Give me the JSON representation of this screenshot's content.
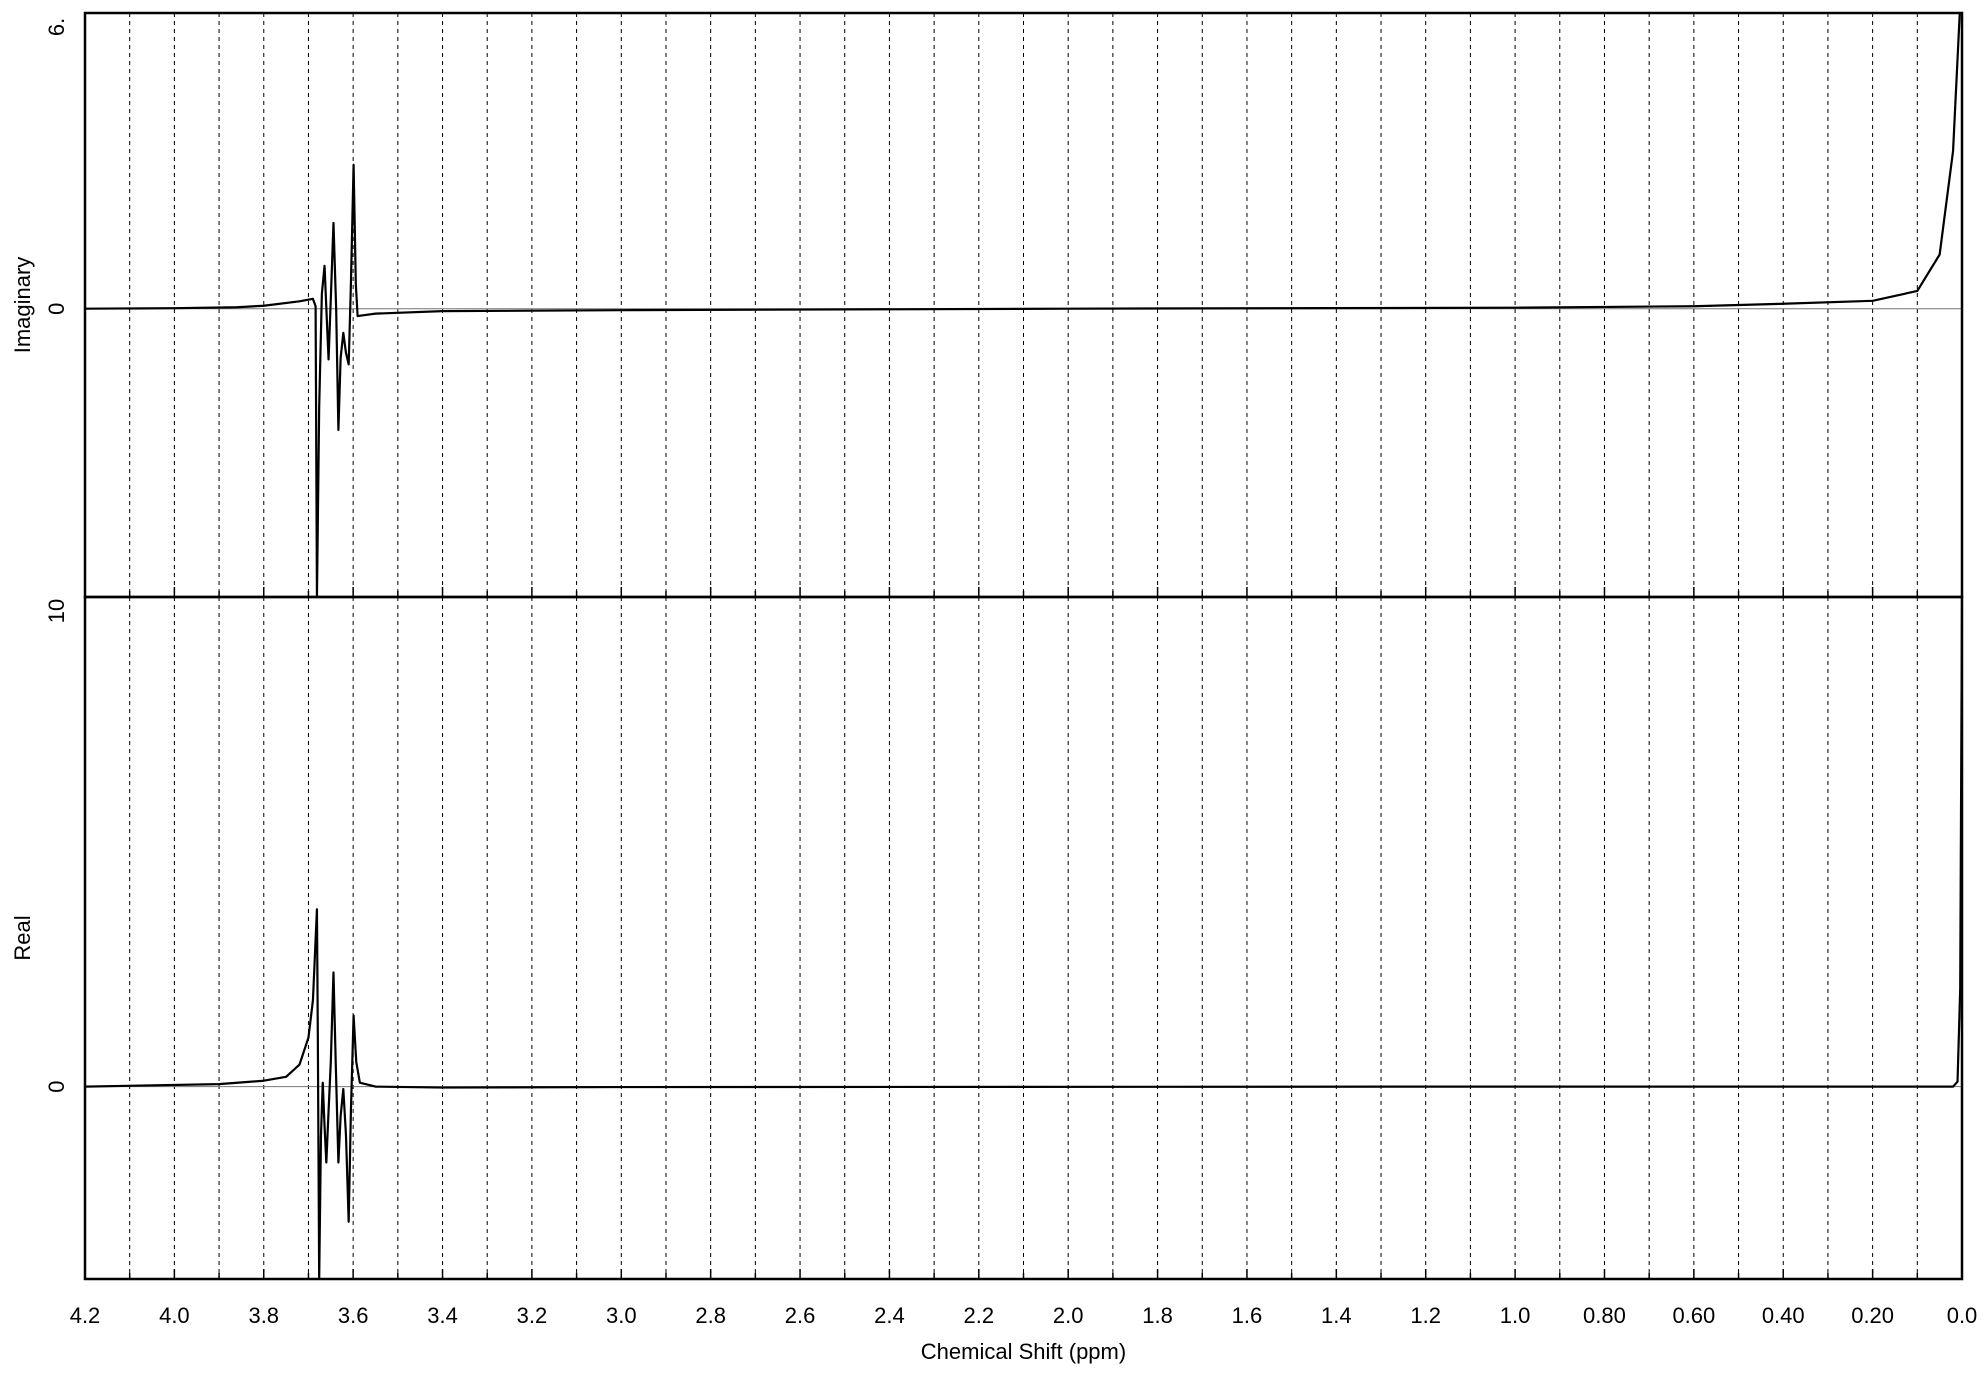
{
  "chart_data": [
    {
      "type": "line",
      "ylabel": "Imaginary",
      "color": "#000000",
      "xlim": [
        4.2,
        0.0
      ],
      "ylim": [
        -5.85,
        6
      ],
      "yticks": [
        {
          "value": 6,
          "label": "6."
        },
        0
      ],
      "x": [
        4.2,
        4.0,
        3.86,
        3.8,
        3.72,
        3.69,
        3.684,
        3.681,
        3.676,
        3.67,
        3.664,
        3.659,
        3.655,
        3.65,
        3.644,
        3.638,
        3.633,
        3.628,
        3.622,
        3.616,
        3.61,
        3.605,
        3.599,
        3.594,
        3.59,
        3.55,
        3.4,
        3.0,
        2.0,
        1.0,
        0.6,
        0.4,
        0.2,
        0.1,
        0.05,
        0.02,
        0.005
      ],
      "values": [
        0,
        0.01,
        0.03,
        0.06,
        0.15,
        0.2,
        0.05,
        -5.85,
        -2.0,
        0.3,
        0.87,
        -0.2,
        -1.03,
        0.2,
        1.74,
        0,
        -2.46,
        -1.0,
        -0.49,
        -0.9,
        -1.13,
        0.5,
        2.92,
        0.5,
        -0.15,
        -0.1,
        -0.05,
        -0.03,
        0,
        0.02,
        0.05,
        0.1,
        0.16,
        0.36,
        1.1,
        3.2,
        6
      ]
    },
    {
      "type": "line",
      "ylabel": "Real",
      "color": "#000000",
      "xlabel": "Chemical Shift (ppm)",
      "xlim": [
        4.2,
        0.0
      ],
      "ylim": [
        -3.93,
        10
      ],
      "yticks": [
        10,
        0
      ],
      "xticks": [
        4.2,
        {
          "value": 4,
          "label": "4.0"
        },
        3.8,
        3.6,
        3.4,
        3.2,
        {
          "value": 3,
          "label": "3.0"
        },
        2.8,
        2.6,
        2.4,
        2.2,
        {
          "value": 2,
          "label": "2.0"
        },
        1.8,
        1.6,
        1.4,
        1.2,
        {
          "value": 1,
          "label": "1.0"
        },
        {
          "value": 0.8,
          "label": "0.80"
        },
        {
          "value": 0.6,
          "label": "0.60"
        },
        {
          "value": 0.4,
          "label": "0.40"
        },
        {
          "value": 0.2,
          "label": "0.20"
        },
        {
          "value": 0,
          "label": "0.0"
        }
      ],
      "x": [
        4.2,
        3.9,
        3.8,
        3.75,
        3.72,
        3.7,
        3.69,
        3.684,
        3.681,
        3.679,
        3.676,
        3.672,
        3.668,
        3.664,
        3.66,
        3.655,
        3.65,
        3.644,
        3.639,
        3.633,
        3.628,
        3.622,
        3.616,
        3.61,
        3.605,
        3.599,
        3.593,
        3.585,
        3.55,
        3.4,
        3.0,
        1.0,
        0.02,
        0.01,
        0.004,
        0.0
      ],
      "values": [
        0,
        0.05,
        0.12,
        0.2,
        0.45,
        1.0,
        1.76,
        3.0,
        3.62,
        1.0,
        -3.93,
        -1.0,
        0.08,
        -0.8,
        -1.55,
        -0.5,
        0.5,
        2.33,
        0.5,
        -1.55,
        -0.6,
        -0.05,
        -1.0,
        -2.76,
        -0.5,
        1.45,
        0.5,
        0.08,
        0,
        -0.02,
        -0.01,
        0,
        0,
        0.1,
        2,
        10
      ]
    }
  ]
}
